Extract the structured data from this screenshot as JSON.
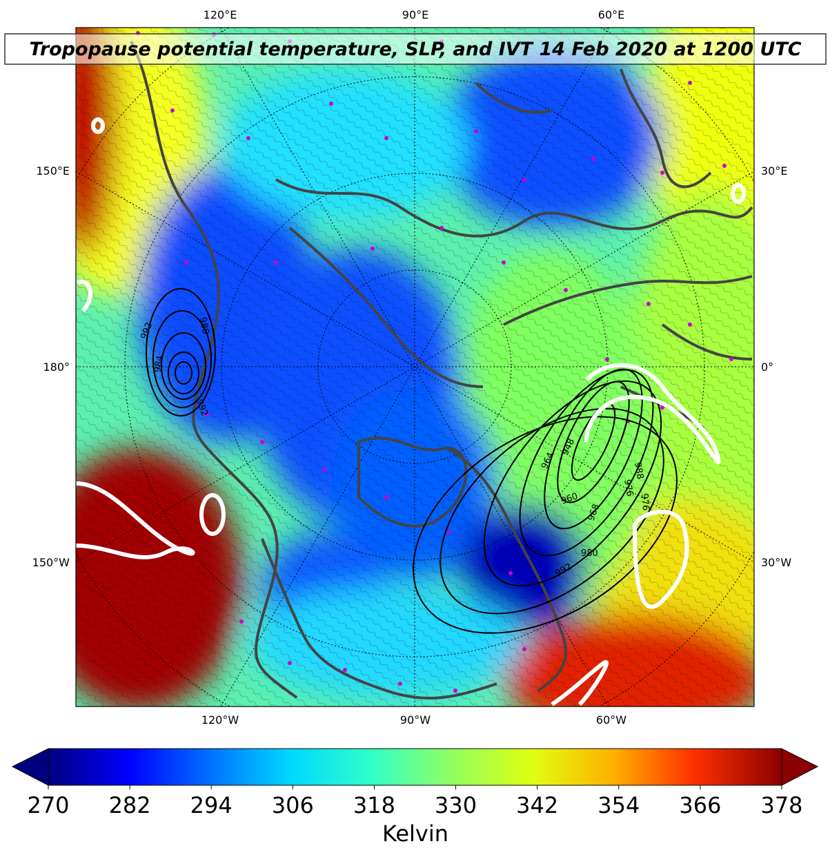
{
  "title": "Tropopause potential temperature, SLP, and IVT 14 Feb 2020 at 1200 UTC",
  "map": {
    "top_labels": [
      "120°E",
      "90°E",
      "60°E"
    ],
    "bottom_labels": [
      "120°W",
      "90°W",
      "60°W"
    ],
    "left_labels": [
      "150°E",
      "180°",
      "150°W"
    ],
    "right_labels": [
      "30°E",
      "0°",
      "30°W"
    ],
    "slp_labels": [
      "992",
      "988",
      "984",
      "992",
      "976",
      "960",
      "968",
      "980",
      "992",
      "988",
      "976",
      "964",
      "948"
    ],
    "colors": {
      "cold": "#00008f",
      "blue": "#0a4cff",
      "cyan": "#10e8ff",
      "green": "#5fff9a",
      "yellow": "#f0ff10",
      "warm": "#ff3000",
      "hot": "#8b0000",
      "coast": "#444444",
      "station": "#cc00cc",
      "ivt": "#ffffff"
    }
  },
  "colorbar": {
    "ticks": [
      "270",
      "282",
      "294",
      "306",
      "318",
      "330",
      "342",
      "354",
      "366",
      "378"
    ],
    "label": "Kelvin",
    "colors": [
      "#00007f",
      "#0000ff",
      "#0070ff",
      "#00d8ff",
      "#30ffc8",
      "#90ff60",
      "#e0ff10",
      "#ffb000",
      "#ff3000",
      "#8b0000"
    ]
  }
}
